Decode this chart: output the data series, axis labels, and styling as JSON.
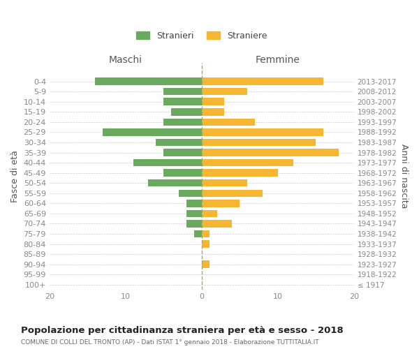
{
  "age_groups": [
    "100+",
    "95-99",
    "90-94",
    "85-89",
    "80-84",
    "75-79",
    "70-74",
    "65-69",
    "60-64",
    "55-59",
    "50-54",
    "45-49",
    "40-44",
    "35-39",
    "30-34",
    "25-29",
    "20-24",
    "15-19",
    "10-14",
    "5-9",
    "0-4"
  ],
  "birth_years": [
    "≤ 1917",
    "1918-1922",
    "1923-1927",
    "1928-1932",
    "1933-1937",
    "1938-1942",
    "1943-1947",
    "1948-1952",
    "1953-1957",
    "1958-1962",
    "1963-1967",
    "1968-1972",
    "1973-1977",
    "1978-1982",
    "1983-1987",
    "1988-1992",
    "1993-1997",
    "1998-2002",
    "2003-2007",
    "2008-2012",
    "2013-2017"
  ],
  "males": [
    0,
    0,
    0,
    0,
    0,
    1,
    2,
    2,
    2,
    3,
    7,
    5,
    9,
    5,
    6,
    13,
    5,
    4,
    5,
    5,
    14
  ],
  "females": [
    0,
    0,
    1,
    0,
    1,
    1,
    4,
    2,
    5,
    8,
    6,
    10,
    12,
    18,
    15,
    16,
    7,
    3,
    3,
    6,
    16
  ],
  "male_color": "#6aaa5e",
  "female_color": "#f5b731",
  "title": "Popolazione per cittadinanza straniera per età e sesso - 2018",
  "subtitle": "COMUNE DI COLLI DEL TRONTO (AP) - Dati ISTAT 1° gennaio 2018 - Elaborazione TUTTITALIA.IT",
  "header_left": "Maschi",
  "header_right": "Femmine",
  "ylabel_left": "Fasce di età",
  "ylabel_right": "Anni di nascita",
  "legend_male": "Stranieri",
  "legend_female": "Straniere",
  "xlim": 20,
  "figwidth": 6.0,
  "figheight": 5.0,
  "dpi": 100
}
